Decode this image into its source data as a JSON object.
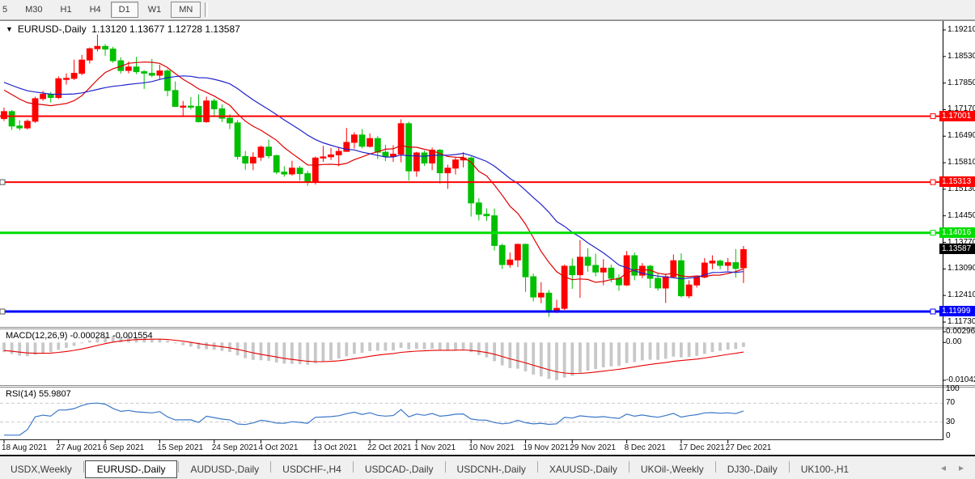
{
  "toolbar": {
    "buttons": [
      {
        "label": "5",
        "cut": true
      },
      {
        "label": "M30"
      },
      {
        "label": "H1"
      },
      {
        "label": "H4"
      },
      {
        "label": "D1",
        "active": true
      },
      {
        "label": "W1"
      },
      {
        "label": "MN",
        "framed": true
      }
    ],
    "active": "D1"
  },
  "icons": {
    "dropdown": "▼",
    "tab_scroll_left": "◂",
    "tab_scroll_right": "▸"
  },
  "chart": {
    "symbol_period": "EURUSD-,Daily",
    "ohlc_text": "1.13120 1.13677 1.12728 1.13587"
  },
  "indicators": {
    "macd": {
      "label": "MACD(12,26,9)",
      "values_text": "-0.000281 -0.001554",
      "axis_labels": [
        "0.002966",
        "0.00",
        "-0.010421"
      ],
      "axis_max": 0.002966,
      "axis_min": -0.010421,
      "histogram_color": "#c8c8c8",
      "signal_color": "#e60000"
    },
    "rsi": {
      "label": "RSI(14)",
      "value_text": "55.9807",
      "axis_labels": [
        "100",
        "70",
        "30",
        "0"
      ],
      "levels": [
        70,
        30
      ],
      "line_color": "#3b78c8",
      "level_color": "#c9c9c9"
    }
  },
  "price_axis": {
    "ticks": [
      "1.19210",
      "1.18530",
      "1.17850",
      "1.17170",
      "1.16490",
      "1.15810",
      "1.15130",
      "1.14450",
      "1.13770",
      "1.13090",
      "1.12410",
      "1.11730"
    ]
  },
  "hlines": [
    {
      "price": 1.17001,
      "label": "1.17001",
      "color": "#ff0000",
      "width": 2
    },
    {
      "price": 1.15313,
      "label": "1.15313",
      "color": "#ff0000",
      "width": 2,
      "left_marker": true
    },
    {
      "price": 1.14016,
      "label": "1.14016",
      "color": "#00dd00",
      "width": 3
    },
    {
      "price": 1.11999,
      "label": "1.11999",
      "color": "#0000ff",
      "width": 3,
      "left_marker": true
    }
  ],
  "current_price": {
    "value": 1.13587,
    "label": "1.13587",
    "bg": "#000000"
  },
  "x_axis_labels": [
    {
      "label": "18 Aug 2021",
      "index": 0
    },
    {
      "label": "27 Aug 2021",
      "index": 7
    },
    {
      "label": "6 Sep 2021",
      "index": 13
    },
    {
      "label": "15 Sep 2021",
      "index": 20
    },
    {
      "label": "24 Sep 2021",
      "index": 27
    },
    {
      "label": "4 Oct 2021",
      "index": 33
    },
    {
      "label": "13 Oct 2021",
      "index": 40
    },
    {
      "label": "22 Oct 2021",
      "index": 47
    },
    {
      "label": "1 Nov 2021",
      "index": 53
    },
    {
      "label": "10 Nov 2021",
      "index": 60
    },
    {
      "label": "19 Nov 2021",
      "index": 67
    },
    {
      "label": "29 Nov 2021",
      "index": 73
    },
    {
      "label": "8 Dec 2021",
      "index": 80
    },
    {
      "label": "17 Dec 2021",
      "index": 87
    },
    {
      "label": "27 Dec 2021",
      "index": 93
    }
  ],
  "tabs": {
    "items": [
      "USDX,Weekly",
      "EURUSD-,Daily",
      "AUDUSD-,Daily",
      "USDCHF-,H4",
      "USDCAD-,Daily",
      "USDCNH-,Daily",
      "XAUUSD-,Daily",
      "UKOil-,Weekly",
      "DJ30-,Daily",
      "UK100-,H1"
    ],
    "active_index": 1
  },
  "chart_data": {
    "type": "candlestick",
    "symbol": "EURUSD-",
    "timeframe": "Daily",
    "title": "EURUSD-,Daily",
    "current_candle": {
      "open": 1.1312,
      "high": 1.13677,
      "low": 1.12728,
      "close": 1.13587
    },
    "ylim": [
      1.1173,
      1.1921
    ],
    "up_color": "#ff0000",
    "down_color": "#00bf00",
    "ma_lines": [
      {
        "period": 10,
        "color": "#dd0000"
      },
      {
        "period": 20,
        "color": "#2222cc"
      }
    ],
    "pre_closes": [
      1.188,
      1.1872,
      1.1865,
      1.1858,
      1.1852,
      1.1846,
      1.184,
      1.1835,
      1.183,
      1.1825,
      1.1832,
      1.1828,
      1.182,
      1.1815,
      1.181,
      1.1808,
      1.1805,
      1.18,
      1.1797,
      1.1795,
      1.179,
      1.1788,
      1.1785,
      1.178,
      1.1778,
      1.1775,
      1.1772,
      1.177,
      1.1768,
      1.174
    ],
    "dates": [
      "2021-08-18",
      "2021-08-19",
      "2021-08-20",
      "2021-08-23",
      "2021-08-24",
      "2021-08-25",
      "2021-08-26",
      "2021-08-27",
      "2021-08-30",
      "2021-08-31",
      "2021-09-01",
      "2021-09-02",
      "2021-09-03",
      "2021-09-06",
      "2021-09-07",
      "2021-09-08",
      "2021-09-09",
      "2021-09-10",
      "2021-09-13",
      "2021-09-14",
      "2021-09-15",
      "2021-09-16",
      "2021-09-17",
      "2021-09-20",
      "2021-09-21",
      "2021-09-22",
      "2021-09-23",
      "2021-09-24",
      "2021-09-27",
      "2021-09-28",
      "2021-09-29",
      "2021-09-30",
      "2021-10-01",
      "2021-10-04",
      "2021-10-05",
      "2021-10-06",
      "2021-10-07",
      "2021-10-08",
      "2021-10-11",
      "2021-10-12",
      "2021-10-13",
      "2021-10-14",
      "2021-10-15",
      "2021-10-18",
      "2021-10-19",
      "2021-10-20",
      "2021-10-21",
      "2021-10-22",
      "2021-10-25",
      "2021-10-26",
      "2021-10-27",
      "2021-10-28",
      "2021-10-29",
      "2021-11-01",
      "2021-11-02",
      "2021-11-03",
      "2021-11-04",
      "2021-11-05",
      "2021-11-08",
      "2021-11-09",
      "2021-11-10",
      "2021-11-11",
      "2021-11-12",
      "2021-11-15",
      "2021-11-16",
      "2021-11-17",
      "2021-11-18",
      "2021-11-19",
      "2021-11-22",
      "2021-11-23",
      "2021-11-24",
      "2021-11-25",
      "2021-11-26",
      "2021-11-29",
      "2021-11-30",
      "2021-12-01",
      "2021-12-02",
      "2021-12-03",
      "2021-12-06",
      "2021-12-07",
      "2021-12-08",
      "2021-12-09",
      "2021-12-10",
      "2021-12-13",
      "2021-12-14",
      "2021-12-15",
      "2021-12-16",
      "2021-12-17",
      "2021-12-20",
      "2021-12-21",
      "2021-12-22",
      "2021-12-23",
      "2021-12-24",
      "2021-12-27",
      "2021-12-28",
      "2021-12-29"
    ],
    "candles": [
      [
        1.1694,
        1.1722,
        1.1688,
        1.1712
      ],
      [
        1.1712,
        1.1716,
        1.1665,
        1.1675
      ],
      [
        1.1675,
        1.169,
        1.1664,
        1.167
      ],
      [
        1.167,
        1.1692,
        1.1666,
        1.1687
      ],
      [
        1.1687,
        1.175,
        1.1683,
        1.1745
      ],
      [
        1.1745,
        1.1765,
        1.174,
        1.1756
      ],
      [
        1.1756,
        1.1762,
        1.1735,
        1.1748
      ],
      [
        1.1748,
        1.1802,
        1.1744,
        1.1796
      ],
      [
        1.1796,
        1.181,
        1.1781,
        1.1797
      ],
      [
        1.1797,
        1.1845,
        1.1793,
        1.181
      ],
      [
        1.181,
        1.1857,
        1.1805,
        1.1844
      ],
      [
        1.1844,
        1.1876,
        1.1835,
        1.1873
      ],
      [
        1.1873,
        1.1909,
        1.1866,
        1.1879
      ],
      [
        1.1879,
        1.1885,
        1.1855,
        1.1872
      ],
      [
        1.1872,
        1.1878,
        1.1837,
        1.1842
      ],
      [
        1.1842,
        1.1851,
        1.1809,
        1.1817
      ],
      [
        1.1817,
        1.184,
        1.181,
        1.1826
      ],
      [
        1.1826,
        1.1852,
        1.1808,
        1.1814
      ],
      [
        1.1814,
        1.1818,
        1.177,
        1.181
      ],
      [
        1.181,
        1.1847,
        1.18,
        1.1805
      ],
      [
        1.1805,
        1.1832,
        1.1795,
        1.1816
      ],
      [
        1.1816,
        1.1821,
        1.1751,
        1.1766
      ],
      [
        1.1766,
        1.1789,
        1.1724,
        1.1725
      ],
      [
        1.1725,
        1.1739,
        1.17,
        1.1726
      ],
      [
        1.1726,
        1.1749,
        1.1717,
        1.1725
      ],
      [
        1.1725,
        1.1756,
        1.1684,
        1.1686
      ],
      [
        1.1686,
        1.175,
        1.1683,
        1.1739
      ],
      [
        1.1739,
        1.1745,
        1.1701,
        1.1719
      ],
      [
        1.1719,
        1.173,
        1.1685,
        1.1695
      ],
      [
        1.1695,
        1.1705,
        1.1667,
        1.1683
      ],
      [
        1.1683,
        1.169,
        1.1589,
        1.1597
      ],
      [
        1.1597,
        1.1611,
        1.1563,
        1.158
      ],
      [
        1.158,
        1.1608,
        1.1562,
        1.1595
      ],
      [
        1.1595,
        1.1625,
        1.1586,
        1.1621
      ],
      [
        1.1621,
        1.164,
        1.1592,
        1.1599
      ],
      [
        1.1599,
        1.1602,
        1.1552,
        1.1557
      ],
      [
        1.1557,
        1.1572,
        1.1545,
        1.1552
      ],
      [
        1.1552,
        1.1586,
        1.1548,
        1.1567
      ],
      [
        1.1567,
        1.1573,
        1.1535,
        1.1553
      ],
      [
        1.1553,
        1.156,
        1.1522,
        1.1531
      ],
      [
        1.1531,
        1.1597,
        1.1525,
        1.1593
      ],
      [
        1.1593,
        1.1624,
        1.1583,
        1.1596
      ],
      [
        1.1596,
        1.1619,
        1.1588,
        1.1601
      ],
      [
        1.1601,
        1.1622,
        1.1572,
        1.161
      ],
      [
        1.161,
        1.167,
        1.1609,
        1.1633
      ],
      [
        1.1633,
        1.1659,
        1.1617,
        1.1652
      ],
      [
        1.1652,
        1.1667,
        1.1618,
        1.1623
      ],
      [
        1.1623,
        1.1656,
        1.162,
        1.1643
      ],
      [
        1.1643,
        1.1649,
        1.159,
        1.1608
      ],
      [
        1.1608,
        1.1627,
        1.1585,
        1.1597
      ],
      [
        1.1597,
        1.1626,
        1.1583,
        1.1603
      ],
      [
        1.1603,
        1.1692,
        1.1582,
        1.1681
      ],
      [
        1.1681,
        1.1686,
        1.1535,
        1.156
      ],
      [
        1.156,
        1.1609,
        1.1545,
        1.1606
      ],
      [
        1.1606,
        1.1612,
        1.1573,
        1.158
      ],
      [
        1.158,
        1.162,
        1.1562,
        1.1613
      ],
      [
        1.1613,
        1.1616,
        1.1528,
        1.1555
      ],
      [
        1.1555,
        1.1576,
        1.1514,
        1.1567
      ],
      [
        1.1567,
        1.1595,
        1.1551,
        1.1588
      ],
      [
        1.1588,
        1.1608,
        1.1569,
        1.1593
      ],
      [
        1.1593,
        1.1597,
        1.1443,
        1.1478
      ],
      [
        1.1478,
        1.149,
        1.1433,
        1.1449
      ],
      [
        1.1449,
        1.1464,
        1.1432,
        1.1445
      ],
      [
        1.1445,
        1.1464,
        1.1356,
        1.1369
      ],
      [
        1.1369,
        1.1374,
        1.1309,
        1.132
      ],
      [
        1.132,
        1.1351,
        1.1312,
        1.1332
      ],
      [
        1.1332,
        1.1374,
        1.1314,
        1.1372
      ],
      [
        1.1372,
        1.1374,
        1.125,
        1.1289
      ],
      [
        1.1289,
        1.1297,
        1.1226,
        1.1237
      ],
      [
        1.1237,
        1.1275,
        1.1221,
        1.1247
      ],
      [
        1.1247,
        1.1255,
        1.1186,
        1.1199
      ],
      [
        1.1199,
        1.123,
        1.1196,
        1.1208
      ],
      [
        1.1208,
        1.132,
        1.1204,
        1.1316
      ],
      [
        1.1316,
        1.1336,
        1.1258,
        1.1294
      ],
      [
        1.1294,
        1.1383,
        1.1235,
        1.1339
      ],
      [
        1.1339,
        1.1362,
        1.1302,
        1.1318
      ],
      [
        1.1318,
        1.1348,
        1.129,
        1.1301
      ],
      [
        1.1301,
        1.1334,
        1.1267,
        1.1311
      ],
      [
        1.1311,
        1.132,
        1.1275,
        1.1285
      ],
      [
        1.1285,
        1.1295,
        1.1253,
        1.1268
      ],
      [
        1.1268,
        1.1355,
        1.1265,
        1.1343
      ],
      [
        1.1343,
        1.1351,
        1.128,
        1.1293
      ],
      [
        1.1293,
        1.1324,
        1.1285,
        1.1316
      ],
      [
        1.1316,
        1.1319,
        1.126,
        1.1285
      ],
      [
        1.1285,
        1.1298,
        1.1253,
        1.126
      ],
      [
        1.126,
        1.1297,
        1.1222,
        1.1289
      ],
      [
        1.1289,
        1.1346,
        1.1287,
        1.133
      ],
      [
        1.133,
        1.1349,
        1.1236,
        1.124
      ],
      [
        1.124,
        1.128,
        1.1234,
        1.1268
      ],
      [
        1.1268,
        1.1292,
        1.1261,
        1.1288
      ],
      [
        1.1288,
        1.1337,
        1.1285,
        1.1324
      ],
      [
        1.1324,
        1.1344,
        1.1308,
        1.1329
      ],
      [
        1.1329,
        1.1333,
        1.1308,
        1.1318
      ],
      [
        1.1318,
        1.1337,
        1.1304,
        1.1325
      ],
      [
        1.1325,
        1.136,
        1.1287,
        1.131
      ],
      [
        1.1312,
        1.13677,
        1.12728,
        1.13587
      ]
    ]
  }
}
